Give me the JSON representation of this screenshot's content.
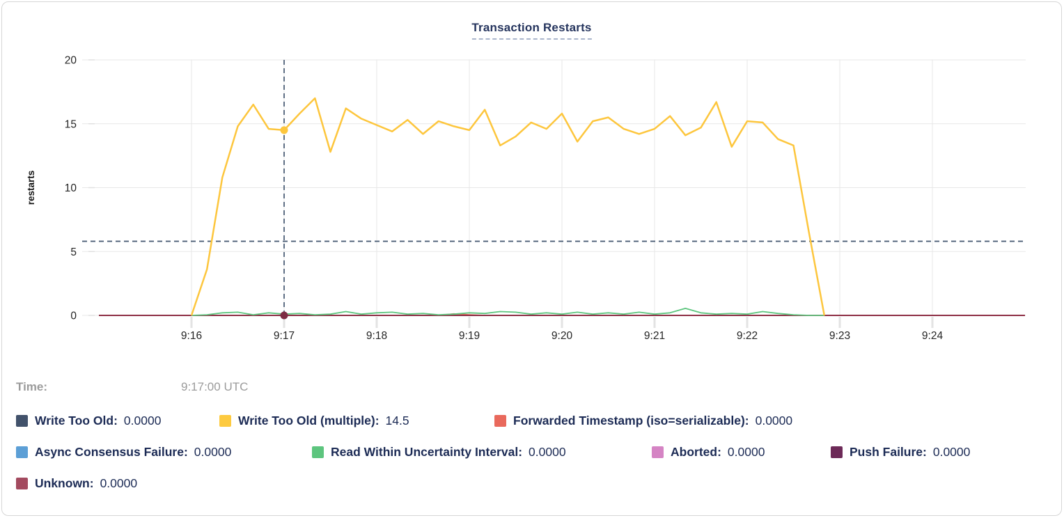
{
  "title": "Transaction Restarts",
  "time_row": {
    "label": "Time:",
    "value": "9:17:00 UTC"
  },
  "legend": {
    "items": [
      {
        "label": "Write Too Old:",
        "value": "0.0000",
        "color": "#42526b"
      },
      {
        "label": "Write Too Old (multiple):",
        "value": "14.5",
        "color": "#fdca40"
      },
      {
        "label": "Forwarded Timestamp (iso=serializable):",
        "value": "0.0000",
        "color": "#e9695c"
      },
      {
        "label": "Async Consensus Failure:",
        "value": "0.0000",
        "color": "#5c9fd6"
      },
      {
        "label": "Read Within Uncertainty Interval:",
        "value": "0.0000",
        "color": "#5dc57e"
      },
      {
        "label": "Aborted:",
        "value": "0.0000",
        "color": "#d584c4"
      },
      {
        "label": "Push Failure:",
        "value": "0.0000",
        "color": "#6d2a58"
      },
      {
        "label": "Unknown:",
        "value": "0.0000",
        "color": "#a34a5f"
      }
    ]
  },
  "chart_data": {
    "type": "line",
    "title": "Transaction Restarts",
    "xlabel": "",
    "ylabel": "restarts",
    "ylim": [
      0,
      20
    ],
    "yticks": [
      0,
      5,
      10,
      15,
      20
    ],
    "xtick_labels": [
      "9:16",
      "9:17",
      "9:18",
      "9:19",
      "9:20",
      "9:21",
      "9:22",
      "9:23",
      "9:24"
    ],
    "x_domain": [
      "9:15:00",
      "9:25:00"
    ],
    "grid": true,
    "legend_position": "bottom",
    "sample_times": [
      "9:16:00",
      "9:16:10",
      "9:16:20",
      "9:16:30",
      "9:16:40",
      "9:16:50",
      "9:17:00",
      "9:17:10",
      "9:17:20",
      "9:17:30",
      "9:17:40",
      "9:17:50",
      "9:18:00",
      "9:18:10",
      "9:18:20",
      "9:18:30",
      "9:18:40",
      "9:18:50",
      "9:19:00",
      "9:19:10",
      "9:19:20",
      "9:19:30",
      "9:19:40",
      "9:19:50",
      "9:20:00",
      "9:20:10",
      "9:20:20",
      "9:20:30",
      "9:20:40",
      "9:20:50",
      "9:21:00",
      "9:21:10",
      "9:21:20",
      "9:21:30",
      "9:21:40",
      "9:21:50",
      "9:22:00",
      "9:22:10",
      "9:22:20",
      "9:22:30",
      "9:22:40",
      "9:22:50"
    ],
    "series": [
      {
        "name": "Write Too Old",
        "color": "#42526b",
        "width": 2,
        "flat": 0
      },
      {
        "name": "Async Consensus Failure",
        "color": "#5c9fd6",
        "width": 2,
        "flat": 0
      },
      {
        "name": "Aborted",
        "color": "#d584c4",
        "width": 2,
        "flat": 0
      },
      {
        "name": "Push Failure",
        "color": "#6d2a58",
        "width": 2,
        "flat": 0
      },
      {
        "name": "Forwarded Timestamp (iso=serializable)",
        "color": "#e9695c",
        "width": 1.8,
        "values": [
          0,
          0,
          0,
          0,
          0,
          0,
          0,
          0,
          0,
          0,
          0,
          0,
          0,
          0,
          0,
          0,
          0,
          0.12,
          0.05,
          0,
          0,
          0,
          0,
          0,
          0,
          0,
          0,
          0,
          0,
          0,
          0,
          0,
          0,
          0,
          0,
          0,
          0,
          0,
          0,
          0,
          0,
          0
        ]
      },
      {
        "name": "Unknown",
        "color": "#8e2f45",
        "width": 2,
        "flat": 0
      },
      {
        "name": "Read Within Uncertainty Interval",
        "color": "#5dc57e",
        "width": 1.8,
        "values": [
          0,
          0.05,
          0.2,
          0.25,
          0.05,
          0.2,
          0.1,
          0.15,
          0.05,
          0.1,
          0.3,
          0.1,
          0.2,
          0.25,
          0.1,
          0.15,
          0.05,
          0.1,
          0.2,
          0.15,
          0.3,
          0.25,
          0.1,
          0.2,
          0.1,
          0.25,
          0.1,
          0.2,
          0.1,
          0.25,
          0.1,
          0.2,
          0.55,
          0.2,
          0.1,
          0.15,
          0.1,
          0.3,
          0.15,
          0.05,
          0,
          0
        ]
      },
      {
        "name": "Write Too Old (multiple)",
        "color": "#fdc63d",
        "width": 2.5,
        "values": [
          0,
          3.6,
          10.8,
          14.8,
          16.5,
          14.6,
          14.5,
          15.8,
          17.0,
          12.8,
          16.2,
          15.4,
          14.9,
          14.4,
          15.3,
          14.2,
          15.2,
          14.8,
          14.5,
          16.1,
          13.3,
          14.0,
          15.1,
          14.6,
          15.8,
          13.6,
          15.2,
          15.5,
          14.6,
          14.2,
          14.6,
          15.6,
          14.1,
          14.7,
          16.7,
          13.2,
          15.2,
          15.1,
          13.8,
          13.3,
          6.5,
          0
        ]
      }
    ],
    "hover": {
      "time": "9:17:00",
      "crosshair_value": 5.8,
      "points": [
        {
          "series": "Write Too Old (multiple)",
          "value": 14.5,
          "color": "#fdc63d"
        },
        {
          "series": "Unknown",
          "value": 0,
          "color": "#7e2c44"
        }
      ]
    }
  }
}
